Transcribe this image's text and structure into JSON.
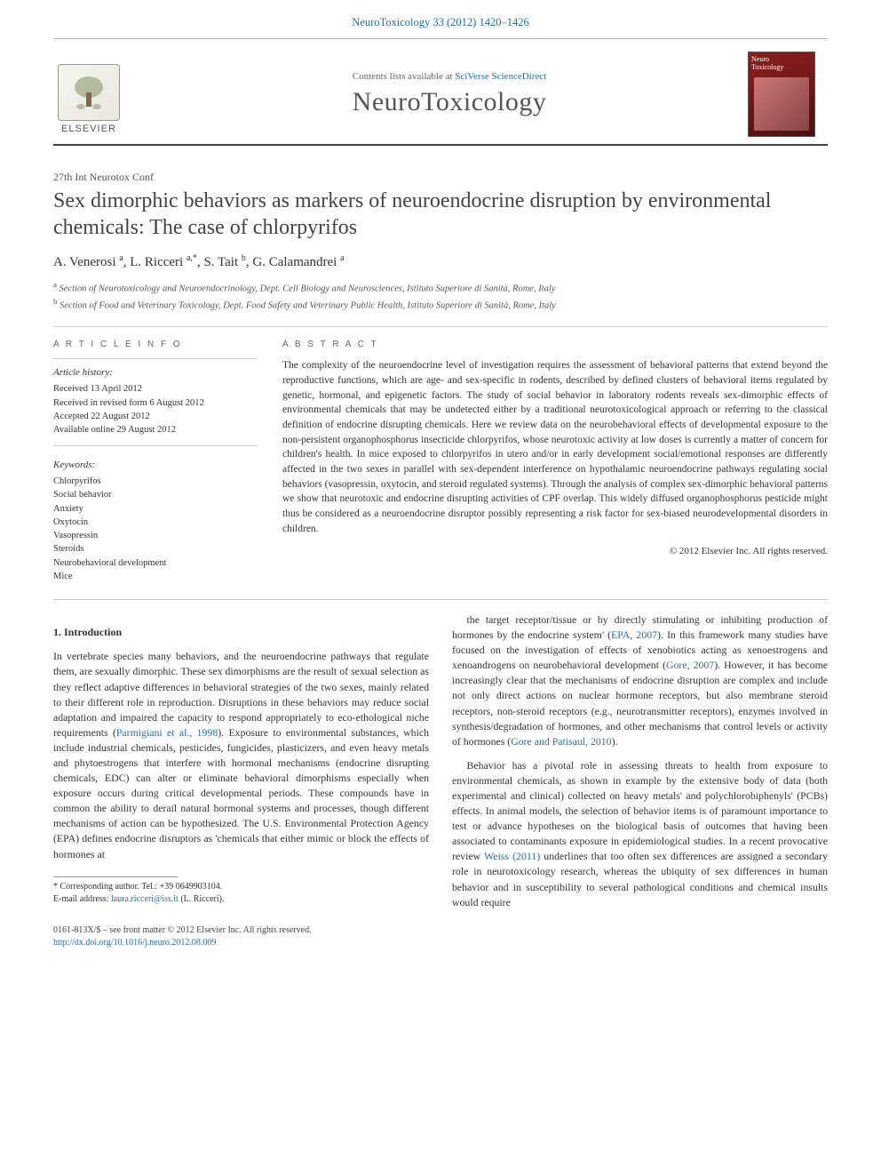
{
  "header": {
    "citation": "NeuroToxicology 33 (2012) 1420–1426"
  },
  "masthead": {
    "contents_prefix": "Contents lists available at ",
    "contents_link": "SciVerse ScienceDirect",
    "journal": "NeuroToxicology",
    "elsevier": "ELSEVIER",
    "cover_label_line1": "Neuro",
    "cover_label_line2": "Toxicology"
  },
  "article": {
    "type": "27th Int Neurotox Conf",
    "title": "Sex dimorphic behaviors as markers of neuroendocrine disruption by environmental chemicals: The case of chlorpyrifos",
    "authors_html": "A. Venerosi <sup>a</sup>, L. Ricceri <sup>a,*</sup>, S. Tait <sup>b</sup>, G. Calamandrei <sup>a</sup>",
    "affiliations": {
      "a": "Section of Neurotoxicology and Neuroendocrinology, Dept. Cell Biology and Neurosciences, Istituto Superiore di Sanità, Rome, Italy",
      "b": "Section of Food and Veterinary Toxicology, Dept. Food Safety and Veterinary Public Health, Istituto Superiore di Sanità, Rome, Italy"
    }
  },
  "info": {
    "label": "A R T I C L E   I N F O",
    "history_head": "Article history:",
    "history": [
      "Received 13 April 2012",
      "Received in revised form 6 August 2012",
      "Accepted 22 August 2012",
      "Available online 29 August 2012"
    ],
    "keywords_head": "Keywords:",
    "keywords": [
      "Chlorpyrifos",
      "Social behavior",
      "Anxiety",
      "Oxytocin",
      "Vasopressin",
      "Steroids",
      "Neurobehavioral development",
      "Mice"
    ]
  },
  "abstract": {
    "label": "A B S T R A C T",
    "text": "The complexity of the neuroendocrine level of investigation requires the assessment of behavioral patterns that extend beyond the reproductive functions, which are age- and sex-specific in rodents, described by defined clusters of behavioral items regulated by genetic, hormonal, and epigenetic factors. The study of social behavior in laboratory rodents reveals sex-dimorphic effects of environmental chemicals that may be undetected either by a traditional neurotoxicological approach or referring to the classical definition of endocrine disrupting chemicals. Here we review data on the neurobehavioral effects of developmental exposure to the non-persistent organophosphorus insecticide chlorpyrifos, whose neurotoxic activity at low doses is currently a matter of concern for children's health. In mice exposed to chlorpyrifos in utero and/or in early development social/emotional responses are differently affected in the two sexes in parallel with sex-dependent interference on hypothalamic neuroendocrine pathways regulating social behaviors (vasopressin, oxytocin, and steroid regulated systems). Through the analysis of complex sex-dimorphic behavioral patterns we show that neurotoxic and endocrine disrupting activities of CPF overlap. This widely diffused organophosphorus pesticide might thus be considered as a neuroendocrine disruptor possibly representing a risk factor for sex-biased neurodevelopmental disorders in children.",
    "copyright": "© 2012 Elsevier Inc. All rights reserved."
  },
  "body": {
    "heading1": "1. Introduction",
    "p1_pre": "In vertebrate species many behaviors, and the neuroendocrine pathways that regulate them, are sexually dimorphic. These sex dimorphisms are the result of sexual selection as they reflect adaptive differences in behavioral strategies of the two sexes, mainly related to their different role in reproduction. Disruptions in these behaviors may reduce social adaptation and impaired the capacity to respond appropriately to eco-ethological niche requirements (",
    "p1_ref": "Parmigiani et al., 1998",
    "p1_post": "). Exposure to environmental substances, which include industrial chemicals, pesticides, fungicides, plasticizers, and even heavy metals and phytoestrogens that interfere with hormonal mechanisms (endocrine disrupting chemicals, EDC) can alter or eliminate behavioral dimorphisms especially when exposure occurs during critical developmental periods. These compounds have in common the ability to derail natural hormonal systems and processes, though different mechanisms of action can be hypothesized. The U.S. Environmental Protection Agency (EPA) defines endocrine disruptors as 'chemicals that either mimic or block the effects of hormones at",
    "p2_a": "the target receptor/tissue or by directly stimulating or inhibiting production of hormones by the endocrine system' (",
    "p2_ref1": "EPA, 2007",
    "p2_b": "). In this framework many studies have focused on the investigation of effects of xenobiotics acting as xenoestrogens and xenoandrogens on neurobehavioral development (",
    "p2_ref2": "Gore, 2007",
    "p2_c": "). However, it has become increasingly clear that the mechanisms of endocrine disruption are complex and include not only direct actions on nuclear hormone receptors, but also membrane steroid receptors, non-steroid receptors (e.g., neurotransmitter receptors), enzymes involved in synthesis/degradation of hormones, and other mechanisms that control levels or activity of hormones (",
    "p2_ref3": "Gore and Patisaul, 2010",
    "p2_d": ").",
    "p3_a": "Behavior has a pivotal role in assessing threats to health from exposure to environmental chemicals, as shown in example by the extensive body of data (both experimental and clinical) collected on heavy metals' and polychlorobiphenyls' (PCBs) effects. In animal models, the selection of behavior items is of paramount importance to test or advance hypotheses on the biological basis of outcomes that having been associated to contaminants exposure in epidemiological studies. In a recent provocative review ",
    "p3_ref": "Weiss (2011)",
    "p3_b": " underlines that too often sex differences are assigned a secondary role in neurotoxicology research, whereas the ubiquity of sex differences in human behavior and in susceptibility to several pathological conditions and chemical insults would require"
  },
  "footnotes": {
    "corresponding": "* Corresponding author. Tel.: +39 0649903104.",
    "email_label": "E-mail address: ",
    "email": "laura.ricceri@iss.it",
    "email_suffix": " (L. Ricceri)."
  },
  "footer": {
    "line1": "0161-813X/$ – see front matter © 2012 Elsevier Inc. All rights reserved.",
    "doi": "http://dx.doi.org/10.1016/j.neuro.2012.08.009"
  }
}
